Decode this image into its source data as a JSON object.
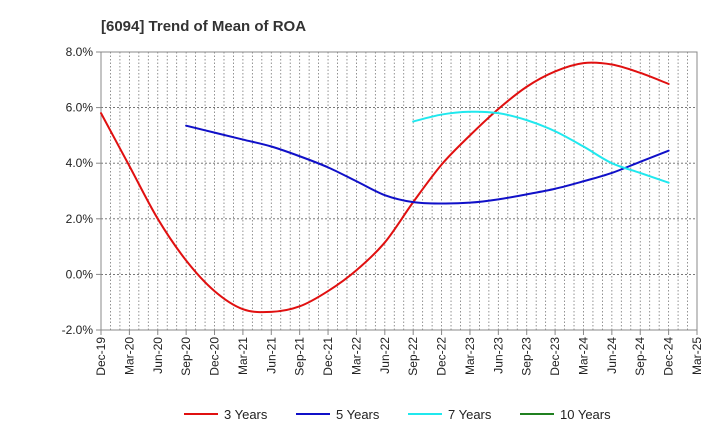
{
  "chart_data": {
    "type": "line",
    "title": "[6094]  Trend of Mean of ROA",
    "xlabel": "",
    "ylabel": "",
    "ylim": [
      -2.0,
      8.0
    ],
    "yticks": [
      "-2.0%",
      "0.0%",
      "2.0%",
      "4.0%",
      "6.0%",
      "8.0%"
    ],
    "ytick_values": [
      -2.0,
      0.0,
      2.0,
      4.0,
      6.0,
      8.0
    ],
    "grid": true,
    "legend_position": "bottom",
    "categories": [
      "Dec-19",
      "Mar-20",
      "Jun-20",
      "Sep-20",
      "Dec-20",
      "Mar-21",
      "Jun-21",
      "Sep-21",
      "Dec-21",
      "Mar-22",
      "Jun-22",
      "Sep-22",
      "Dec-22",
      "Mar-23",
      "Jun-23",
      "Sep-23",
      "Dec-23",
      "Mar-24",
      "Jun-24",
      "Sep-24",
      "Dec-24",
      "Mar-25"
    ],
    "series": [
      {
        "name": "3 Years",
        "color": "#e01010",
        "values": [
          5.8,
          3.9,
          2.0,
          0.5,
          -0.6,
          -1.25,
          -1.35,
          -1.15,
          -0.6,
          0.15,
          1.15,
          2.6,
          3.95,
          5.0,
          5.95,
          6.75,
          7.3,
          7.6,
          7.55,
          7.25,
          6.85,
          null
        ]
      },
      {
        "name": "5 Years",
        "color": "#1010c8",
        "values": [
          null,
          null,
          null,
          5.35,
          5.1,
          4.85,
          4.6,
          4.25,
          3.85,
          3.35,
          2.85,
          2.6,
          2.55,
          2.58,
          2.7,
          2.88,
          3.08,
          3.35,
          3.65,
          4.05,
          4.45,
          null
        ]
      },
      {
        "name": "7 Years",
        "color": "#20e8ee",
        "values": [
          null,
          null,
          null,
          null,
          null,
          null,
          null,
          null,
          null,
          null,
          null,
          5.5,
          5.75,
          5.85,
          5.8,
          5.55,
          5.15,
          4.6,
          4.0,
          3.65,
          3.3,
          null
        ]
      },
      {
        "name": "10 Years",
        "color": "#208020",
        "values": [
          null,
          null,
          null,
          null,
          null,
          null,
          null,
          null,
          null,
          null,
          null,
          null,
          null,
          null,
          null,
          null,
          null,
          null,
          null,
          null,
          null,
          null
        ]
      }
    ]
  }
}
